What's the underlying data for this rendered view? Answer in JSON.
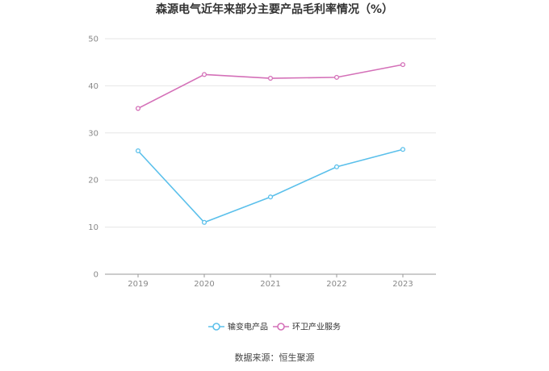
{
  "chart_data": {
    "type": "line",
    "title": "森源电气近年来部分主要产品毛利率情况（%）",
    "x": [
      "2019",
      "2020",
      "2021",
      "2022",
      "2023"
    ],
    "ylim": [
      0,
      50
    ],
    "yticks": [
      0,
      10,
      20,
      30,
      40,
      50
    ],
    "grid": true,
    "legend_position": "bottom-center",
    "series": [
      {
        "name": "输变电产品",
        "color": "#5bc0eb",
        "values": [
          26.2,
          11.0,
          16.4,
          22.8,
          26.5
        ]
      },
      {
        "name": "环卫产业服务",
        "color": "#d470b8",
        "values": [
          35.2,
          42.4,
          41.6,
          41.8,
          44.5
        ]
      }
    ]
  },
  "source_text": "数据来源：恒生聚源"
}
